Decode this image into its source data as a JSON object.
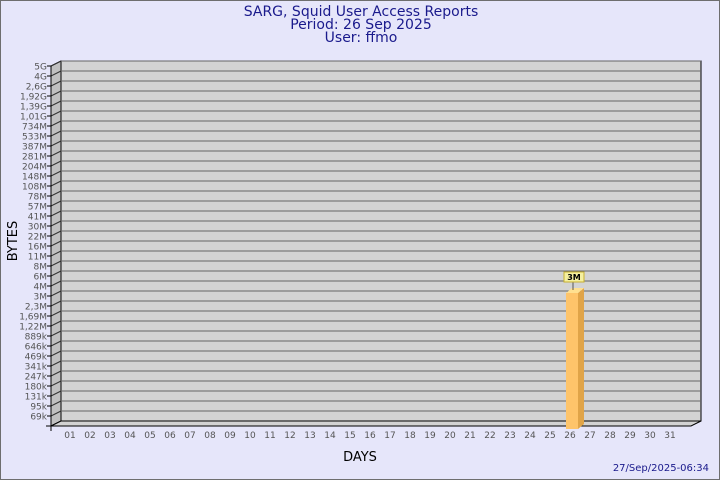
{
  "title": "SARG, Squid User Access Reports",
  "period": "Period: 26 Sep 2025",
  "user": "User: ffmo",
  "timestamp": "27/Sep/2025-06:34",
  "colors": {
    "background": "#e6e6fa",
    "wall": "#d3d3d3",
    "side_wall": "#c0c0c0",
    "bar_front": "#fec46a",
    "bar_side": "#e0a448",
    "bar_top": "#ffe090",
    "title": "#1a1a8c",
    "label_box": "#f5f0a0"
  },
  "chart_data": {
    "type": "bar",
    "xlabel": "DAYS",
    "ylabel": "BYTES",
    "y_scale": "log",
    "grid": true,
    "y_ticks": [
      "5G",
      "4G",
      "2,6G",
      "1,92G",
      "1,39G",
      "1,01G",
      "734M",
      "533M",
      "387M",
      "281M",
      "204M",
      "148M",
      "108M",
      "78M",
      "57M",
      "41M",
      "30M",
      "22M",
      "16M",
      "11M",
      "8M",
      "6M",
      "4M",
      "3M",
      "2,3M",
      "1,69M",
      "1,22M",
      "889k",
      "646k",
      "469k",
      "341k",
      "247k",
      "180k",
      "131k",
      "95k",
      "69k"
    ],
    "categories": [
      "01",
      "02",
      "03",
      "04",
      "05",
      "06",
      "07",
      "08",
      "09",
      "10",
      "11",
      "12",
      "13",
      "14",
      "15",
      "16",
      "17",
      "18",
      "19",
      "20",
      "21",
      "22",
      "23",
      "24",
      "25",
      "26",
      "27",
      "28",
      "29",
      "30",
      "31"
    ],
    "bars": [
      {
        "category": "26",
        "value": "3M"
      }
    ]
  }
}
